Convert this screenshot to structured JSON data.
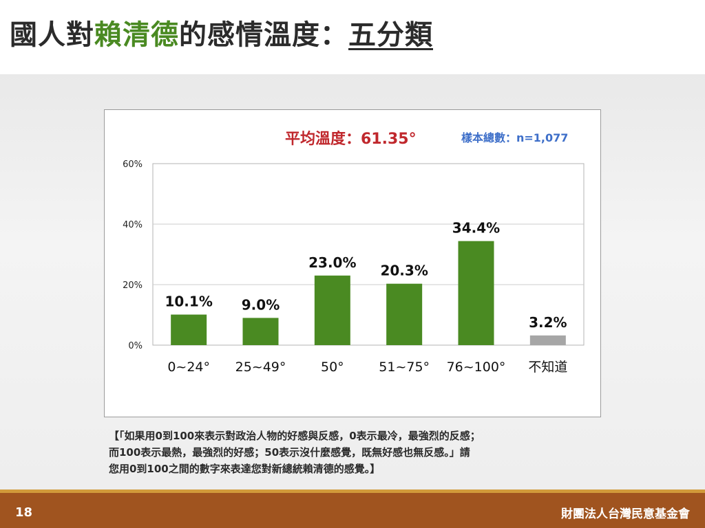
{
  "slide": {
    "title_prefix": "國人對",
    "title_highlight": "賴清德",
    "title_middle": "的感情溫度：",
    "title_underlined": "五分類",
    "page_number": "18",
    "organization": "財團法人台灣民意基金會"
  },
  "note_lines": [
    "【「如果用0到100來表示對政治人物的好感與反感，0表示最冷，最強烈的反感；",
    "而100表示最熱，最強烈的好感；50表示沒什麼感覺，既無好感也無反感。」請",
    "您用0到100之間的數字來表達您對新總統賴清德的感覺。】"
  ],
  "chart_data": {
    "type": "bar",
    "average_label": "平均溫度：61.35°",
    "sample_label": "樣本總數：n=1,077",
    "categories": [
      "0~24°",
      "25~49°",
      "50°",
      "51~75°",
      "76~100°",
      "不知道"
    ],
    "values": [
      10.1,
      9.0,
      23.0,
      20.3,
      34.4,
      3.2
    ],
    "value_labels": [
      "10.1%",
      "9.0%",
      "23.0%",
      "20.3%",
      "34.4%",
      "3.2%"
    ],
    "bar_colors": [
      "#4a8a22",
      "#4a8a22",
      "#4a8a22",
      "#4a8a22",
      "#4a8a22",
      "#a6a6a6"
    ],
    "y_ticks": [
      "0%",
      "20%",
      "40%",
      "60%"
    ],
    "ylim": [
      0,
      60
    ],
    "grid": true,
    "colors": {
      "accent": "#4a8a22",
      "average": "#c0282d",
      "sample": "#3e6fc9",
      "unknown": "#a6a6a6"
    }
  }
}
